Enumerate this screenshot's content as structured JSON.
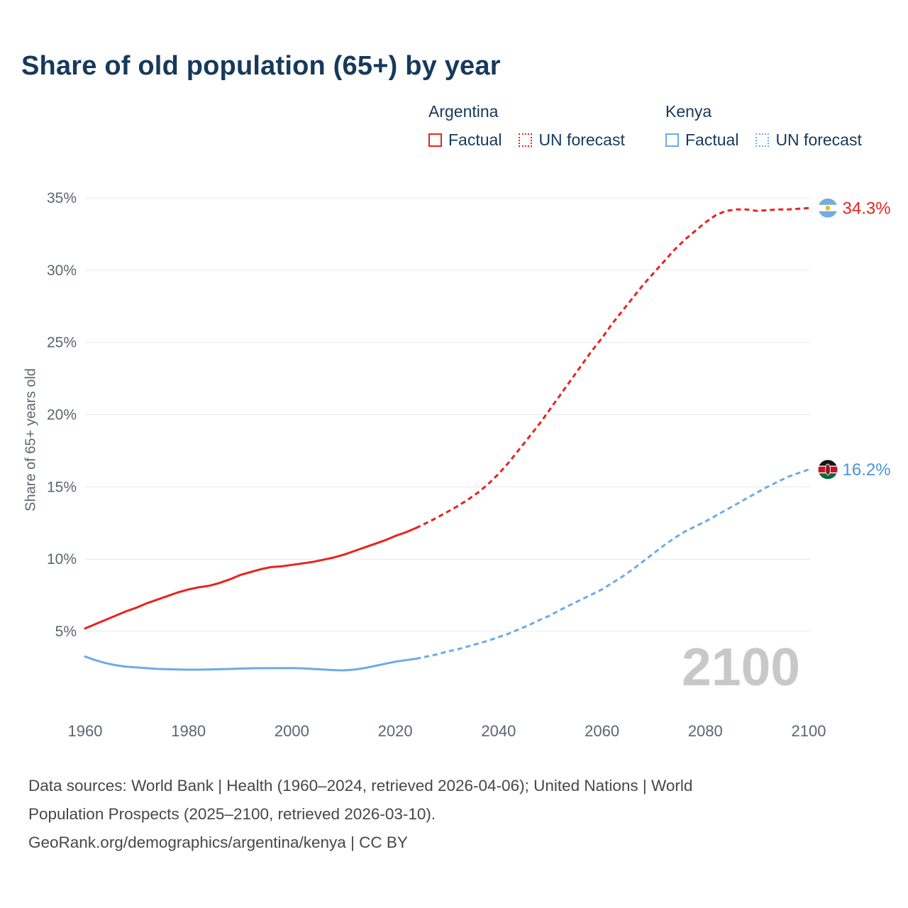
{
  "title": "Share of old population (65+) by year",
  "legend": {
    "groups": [
      {
        "name": "Argentina",
        "color": "#e8231f",
        "items": [
          {
            "label": "Factual",
            "swatch": "solid"
          },
          {
            "label": "UN forecast",
            "swatch": "dotted"
          }
        ]
      },
      {
        "name": "Kenya",
        "color": "#6cabe8",
        "items": [
          {
            "label": "Factual",
            "swatch": "solid"
          },
          {
            "label": "UN forecast",
            "swatch": "dotted"
          }
        ]
      }
    ]
  },
  "chart_data": {
    "type": "line",
    "title": "Share of old population (65+) by year",
    "xlabel": "",
    "ylabel": "Share of 65+ years old",
    "x_domain": [
      1960,
      2100
    ],
    "y_gridline_domain": [
      5,
      35
    ],
    "xlim": [
      1960,
      2100
    ],
    "ylim": [
      0,
      36
    ],
    "grid": "horizontal",
    "legend_position": "top-right",
    "watermark": "2100",
    "yticks": [
      5,
      10,
      15,
      20,
      25,
      30,
      35
    ],
    "xticks": [
      1960,
      1980,
      2000,
      2020,
      2040,
      2060,
      2080,
      2100
    ],
    "series": [
      {
        "id": "argentina-factual",
        "name": "Argentina Factual",
        "color": "#e8231f",
        "style": "solid",
        "width": 3,
        "points": [
          [
            1960,
            5.2
          ],
          [
            1962,
            5.5
          ],
          [
            1964,
            5.8
          ],
          [
            1966,
            6.1
          ],
          [
            1968,
            6.4
          ],
          [
            1970,
            6.65
          ],
          [
            1972,
            6.95
          ],
          [
            1974,
            7.2
          ],
          [
            1976,
            7.45
          ],
          [
            1978,
            7.7
          ],
          [
            1980,
            7.9
          ],
          [
            1982,
            8.05
          ],
          [
            1984,
            8.15
          ],
          [
            1986,
            8.35
          ],
          [
            1988,
            8.6
          ],
          [
            1990,
            8.9
          ],
          [
            1992,
            9.1
          ],
          [
            1994,
            9.3
          ],
          [
            1996,
            9.45
          ],
          [
            1998,
            9.5
          ],
          [
            2000,
            9.6
          ],
          [
            2002,
            9.7
          ],
          [
            2004,
            9.8
          ],
          [
            2006,
            9.95
          ],
          [
            2008,
            10.1
          ],
          [
            2010,
            10.3
          ],
          [
            2012,
            10.55
          ],
          [
            2014,
            10.8
          ],
          [
            2016,
            11.05
          ],
          [
            2018,
            11.3
          ],
          [
            2020,
            11.6
          ],
          [
            2022,
            11.85
          ],
          [
            2024,
            12.15
          ]
        ]
      },
      {
        "id": "argentina-forecast",
        "name": "Argentina UN forecast",
        "color": "#e8231f",
        "style": "dashed",
        "width": 3,
        "points": [
          [
            2024,
            12.15
          ],
          [
            2026,
            12.5
          ],
          [
            2028,
            12.85
          ],
          [
            2030,
            13.25
          ],
          [
            2032,
            13.65
          ],
          [
            2034,
            14.1
          ],
          [
            2036,
            14.6
          ],
          [
            2038,
            15.2
          ],
          [
            2040,
            15.9
          ],
          [
            2042,
            16.7
          ],
          [
            2044,
            17.6
          ],
          [
            2046,
            18.5
          ],
          [
            2048,
            19.4
          ],
          [
            2050,
            20.4
          ],
          [
            2052,
            21.4
          ],
          [
            2054,
            22.4
          ],
          [
            2056,
            23.4
          ],
          [
            2058,
            24.4
          ],
          [
            2060,
            25.3
          ],
          [
            2062,
            26.3
          ],
          [
            2064,
            27.2
          ],
          [
            2066,
            28.1
          ],
          [
            2068,
            29.0
          ],
          [
            2070,
            29.8
          ],
          [
            2072,
            30.6
          ],
          [
            2074,
            31.4
          ],
          [
            2076,
            32.1
          ],
          [
            2078,
            32.7
          ],
          [
            2080,
            33.3
          ],
          [
            2082,
            33.8
          ],
          [
            2084,
            34.1
          ],
          [
            2086,
            34.2
          ],
          [
            2088,
            34.2
          ],
          [
            2090,
            34.1
          ],
          [
            2092,
            34.15
          ],
          [
            2094,
            34.2
          ],
          [
            2096,
            34.2
          ],
          [
            2098,
            34.25
          ],
          [
            2100,
            34.3
          ]
        ],
        "end_label": "34.3%",
        "label_color": "#e8231f",
        "flag": "argentina"
      },
      {
        "id": "kenya-factual",
        "name": "Kenya Factual",
        "color": "#6cabe8",
        "style": "solid",
        "width": 3,
        "points": [
          [
            1960,
            3.25
          ],
          [
            1962,
            3.0
          ],
          [
            1964,
            2.8
          ],
          [
            1966,
            2.65
          ],
          [
            1968,
            2.55
          ],
          [
            1970,
            2.5
          ],
          [
            1972,
            2.45
          ],
          [
            1974,
            2.4
          ],
          [
            1976,
            2.38
          ],
          [
            1978,
            2.36
          ],
          [
            1980,
            2.35
          ],
          [
            1982,
            2.35
          ],
          [
            1984,
            2.36
          ],
          [
            1986,
            2.38
          ],
          [
            1988,
            2.4
          ],
          [
            1990,
            2.42
          ],
          [
            1992,
            2.44
          ],
          [
            1994,
            2.45
          ],
          [
            1996,
            2.45
          ],
          [
            1998,
            2.45
          ],
          [
            2000,
            2.46
          ],
          [
            2002,
            2.44
          ],
          [
            2004,
            2.4
          ],
          [
            2006,
            2.36
          ],
          [
            2008,
            2.32
          ],
          [
            2010,
            2.3
          ],
          [
            2012,
            2.35
          ],
          [
            2014,
            2.45
          ],
          [
            2016,
            2.6
          ],
          [
            2018,
            2.75
          ],
          [
            2020,
            2.9
          ],
          [
            2022,
            3.0
          ],
          [
            2024,
            3.1
          ]
        ]
      },
      {
        "id": "kenya-forecast",
        "name": "Kenya UN forecast",
        "color": "#6cabe8",
        "style": "dashed",
        "width": 3,
        "points": [
          [
            2024,
            3.1
          ],
          [
            2026,
            3.25
          ],
          [
            2028,
            3.4
          ],
          [
            2030,
            3.6
          ],
          [
            2032,
            3.75
          ],
          [
            2034,
            3.95
          ],
          [
            2036,
            4.15
          ],
          [
            2038,
            4.35
          ],
          [
            2040,
            4.6
          ],
          [
            2042,
            4.85
          ],
          [
            2044,
            5.15
          ],
          [
            2046,
            5.45
          ],
          [
            2048,
            5.8
          ],
          [
            2050,
            6.1
          ],
          [
            2052,
            6.5
          ],
          [
            2054,
            6.85
          ],
          [
            2056,
            7.2
          ],
          [
            2058,
            7.55
          ],
          [
            2060,
            7.9
          ],
          [
            2062,
            8.35
          ],
          [
            2064,
            8.8
          ],
          [
            2066,
            9.3
          ],
          [
            2068,
            9.85
          ],
          [
            2070,
            10.4
          ],
          [
            2072,
            10.95
          ],
          [
            2074,
            11.45
          ],
          [
            2076,
            11.9
          ],
          [
            2078,
            12.25
          ],
          [
            2080,
            12.6
          ],
          [
            2082,
            13.0
          ],
          [
            2084,
            13.4
          ],
          [
            2086,
            13.8
          ],
          [
            2088,
            14.2
          ],
          [
            2090,
            14.6
          ],
          [
            2092,
            15.0
          ],
          [
            2094,
            15.35
          ],
          [
            2096,
            15.7
          ],
          [
            2098,
            15.95
          ],
          [
            2100,
            16.2
          ]
        ],
        "end_label": "16.2%",
        "label_color": "#4a94dc",
        "flag": "kenya"
      }
    ],
    "colors": {
      "grid": "#e8e8e8",
      "tick_label": "#5b6571",
      "watermark": "#c8c8c8",
      "title": "#16395c"
    }
  },
  "footer": {
    "line1": "Data sources: World Bank | Health (1960–2024, retrieved 2026-04-06); United Nations | World",
    "line2": "Population Prospects (2025–2100, retrieved 2026-03-10).",
    "line3": "GeoRank.org/demographics/argentina/kenya | CC BY"
  }
}
